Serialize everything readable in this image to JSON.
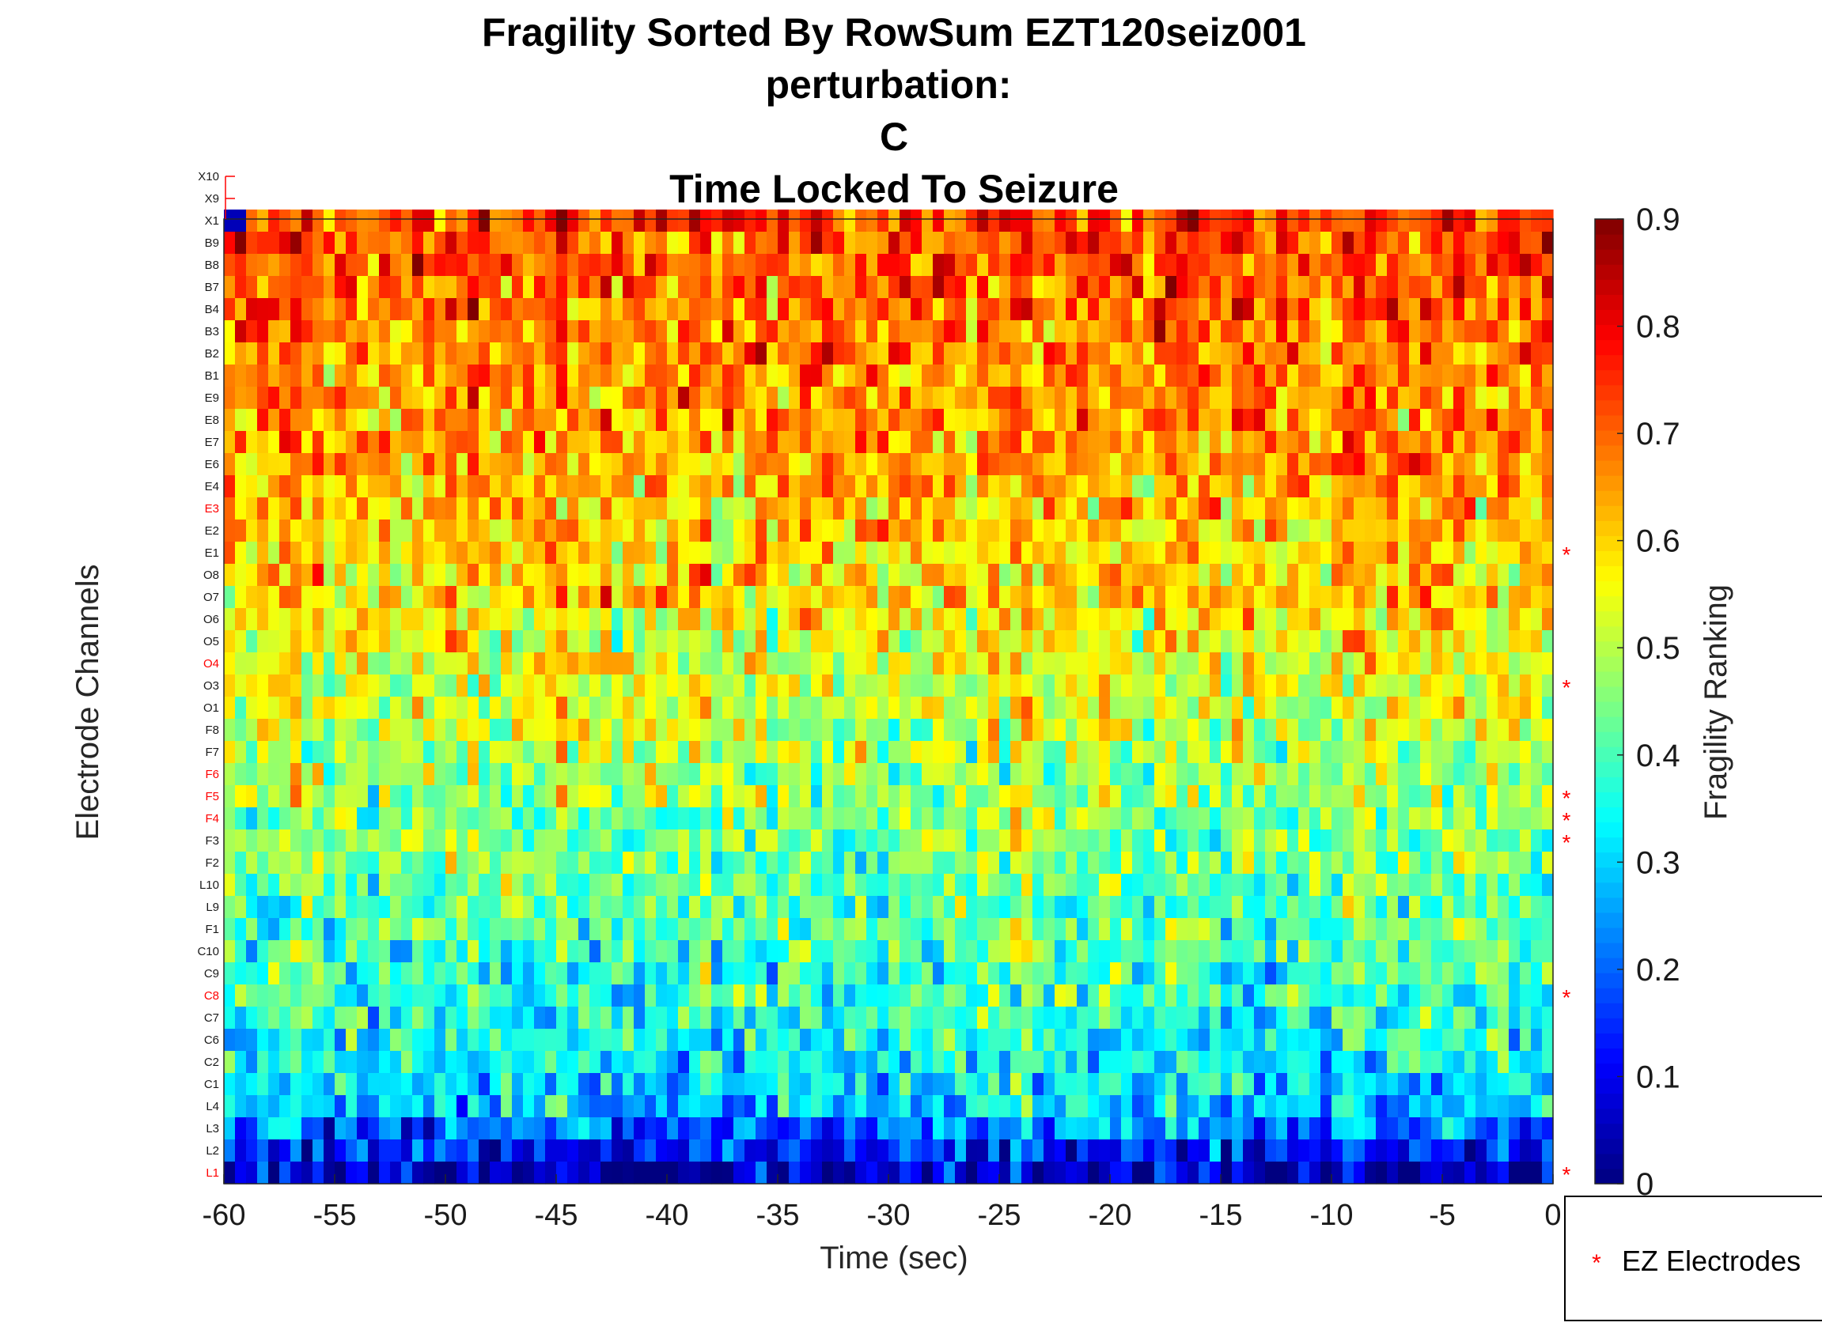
{
  "chart_data": {
    "type": "heatmap",
    "title": [
      "Fragility Sorted By RowSum EZT120seiz001",
      "perturbation:",
      "C",
      "Time Locked To Seizure"
    ],
    "xlabel": "Time (sec)",
    "ylabel": "Electrode Channels",
    "colorbar_label": "Fragility Ranking",
    "colormap": "jet",
    "clim": [
      0,
      0.9
    ],
    "xlim": [
      -60,
      0
    ],
    "x_ticks": [
      -60,
      -55,
      -50,
      -45,
      -40,
      -35,
      -30,
      -25,
      -20,
      -15,
      -10,
      -5,
      0
    ],
    "colorbar_ticks": [
      0,
      0.1,
      0.2,
      0.3,
      0.4,
      0.5,
      0.6,
      0.7,
      0.8,
      0.9
    ],
    "n_time_windows": 120,
    "channels": [
      "X10",
      "X9",
      "X1",
      "B9",
      "B8",
      "B7",
      "B4",
      "B3",
      "B2",
      "B1",
      "E9",
      "E8",
      "E7",
      "E6",
      "E4",
      "E3",
      "E2",
      "E1",
      "O8",
      "O7",
      "O6",
      "O5",
      "O4",
      "O3",
      "O1",
      "F8",
      "F7",
      "F6",
      "F5",
      "F4",
      "F3",
      "F2",
      "L10",
      "L9",
      "F1",
      "C10",
      "C9",
      "C8",
      "C7",
      "C6",
      "C2",
      "C1",
      "L4",
      "L3",
      "L2",
      "L1"
    ],
    "ez_channels": [
      "E3",
      "O4",
      "F6",
      "F5",
      "F4",
      "C8",
      "L1"
    ],
    "ez_label_color": "#ff0000",
    "row_mean_fragility": [
      null,
      null,
      0.74,
      0.72,
      0.71,
      0.7,
      0.7,
      0.69,
      0.68,
      0.67,
      0.66,
      0.66,
      0.65,
      0.64,
      0.63,
      0.62,
      0.61,
      0.6,
      0.6,
      0.59,
      0.57,
      0.56,
      0.55,
      0.54,
      0.53,
      0.51,
      0.49,
      0.48,
      0.47,
      0.45,
      0.44,
      0.43,
      0.42,
      0.42,
      0.41,
      0.4,
      0.39,
      0.38,
      0.37,
      0.35,
      0.33,
      0.31,
      0.29,
      0.22,
      0.14,
      0.06
    ],
    "marker_rows": [
      "E1",
      "O3",
      "F5",
      "F4",
      "F3",
      "C8",
      "L1"
    ],
    "marker_symbol": "*",
    "marker_color": "#ff0000",
    "legend": {
      "entry": "EZ Electrodes",
      "position": "bottom-right"
    }
  }
}
